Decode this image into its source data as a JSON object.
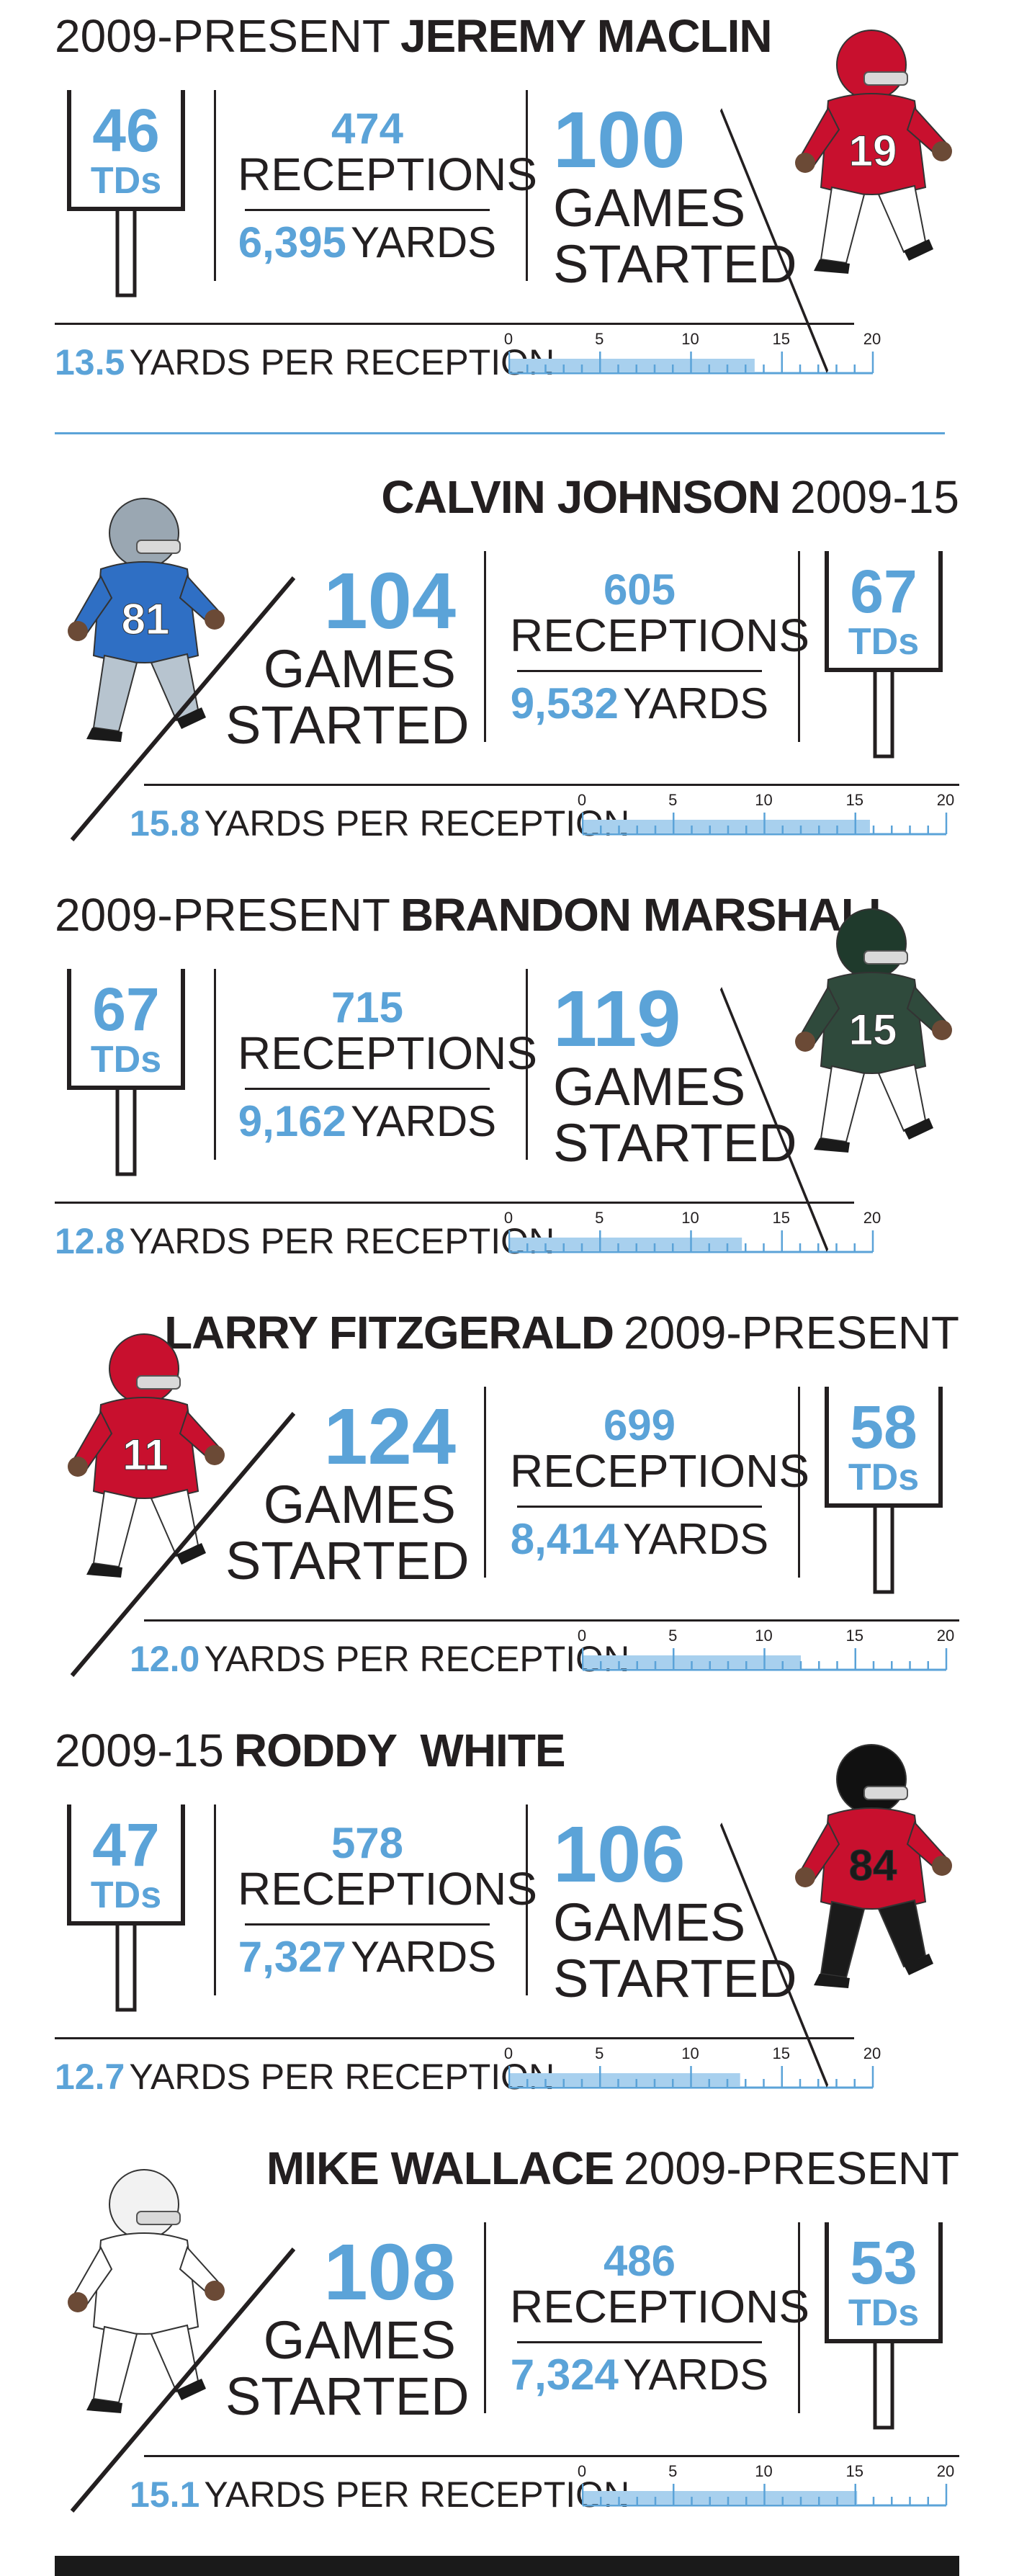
{
  "colors": {
    "accent": "#5ba3d8",
    "text": "#231f20",
    "bar": "#a8d0ee"
  },
  "players": [
    {
      "years": "2009-PRESENT",
      "name": "JEREMY MACLIN",
      "years_position": "before",
      "tds": "46",
      "tds_label": "TDs",
      "receptions": "474",
      "receptions_label": "RECEPTIONS",
      "yards": "6,395",
      "yards_label": "YARDS",
      "games": "100",
      "games_label_1": "GAMES",
      "games_label_2": "STARTED",
      "ypr": "13.5",
      "ypr_label": "YARDS PER RECEPTION",
      "ypr_value": 13.5,
      "uniform": "red-white",
      "jersey": "19"
    },
    {
      "years": "2009-15",
      "name": "CALVIN JOHNSON",
      "years_position": "after",
      "tds": "67",
      "tds_label": "TDs",
      "receptions": "605",
      "receptions_label": "RECEPTIONS",
      "yards": "9,532",
      "yards_label": "YARDS",
      "games": "104",
      "games_label_1": "GAMES",
      "games_label_2": "STARTED",
      "ypr": "15.8",
      "ypr_label": "YARDS PER RECEPTION",
      "ypr_value": 15.8,
      "uniform": "blue",
      "jersey": "81"
    },
    {
      "years": "2009-PRESENT",
      "name": "BRANDON MARSHALL",
      "years_position": "before",
      "tds": "67",
      "tds_label": "TDs",
      "receptions": "715",
      "receptions_label": "RECEPTIONS",
      "yards": "9,162",
      "yards_label": "YARDS",
      "games": "119",
      "games_label_1": "GAMES",
      "games_label_2": "STARTED",
      "ypr": "12.8",
      "ypr_label": "YARDS PER RECEPTION",
      "ypr_value": 12.8,
      "uniform": "green",
      "jersey": "15"
    },
    {
      "years": "2009-PRESENT",
      "name": "LARRY FITZGERALD",
      "years_position": "after",
      "tds": "58",
      "tds_label": "TDs",
      "receptions": "699",
      "receptions_label": "RECEPTIONS",
      "yards": "8,414",
      "yards_label": "YARDS",
      "games": "124",
      "games_label_1": "GAMES",
      "games_label_2": "STARTED",
      "ypr": "12.0",
      "ypr_label": "YARDS PER RECEPTION",
      "ypr_value": 12.0,
      "uniform": "red-white",
      "jersey": "11"
    },
    {
      "years": "2009-15",
      "name": "RODDY  WHITE",
      "years_position": "before",
      "tds": "47",
      "tds_label": "TDs",
      "receptions": "578",
      "receptions_label": "RECEPTIONS",
      "yards": "7,327",
      "yards_label": "YARDS",
      "games": "106",
      "games_label_1": "GAMES",
      "games_label_2": "STARTED",
      "ypr": "12.7",
      "ypr_label": "YARDS PER RECEPTION",
      "ypr_value": 12.7,
      "uniform": "red-black",
      "jersey": "84"
    },
    {
      "years": "2009-PRESENT",
      "name": "MIKE WALLACE",
      "years_position": "after",
      "tds": "53",
      "tds_label": "TDs",
      "receptions": "486",
      "receptions_label": "RECEPTIONS",
      "yards": "7,324",
      "yards_label": "YARDS",
      "games": "108",
      "games_label_1": "GAMES",
      "games_label_2": "STARTED",
      "ypr": "15.1",
      "ypr_label": "YARDS PER RECEPTION",
      "ypr_value": 15.1,
      "uniform": "white-aqua",
      "jersey": ""
    }
  ],
  "scale": {
    "ticks": [
      "0",
      "5",
      "10",
      "15",
      "20"
    ],
    "max": 20
  }
}
